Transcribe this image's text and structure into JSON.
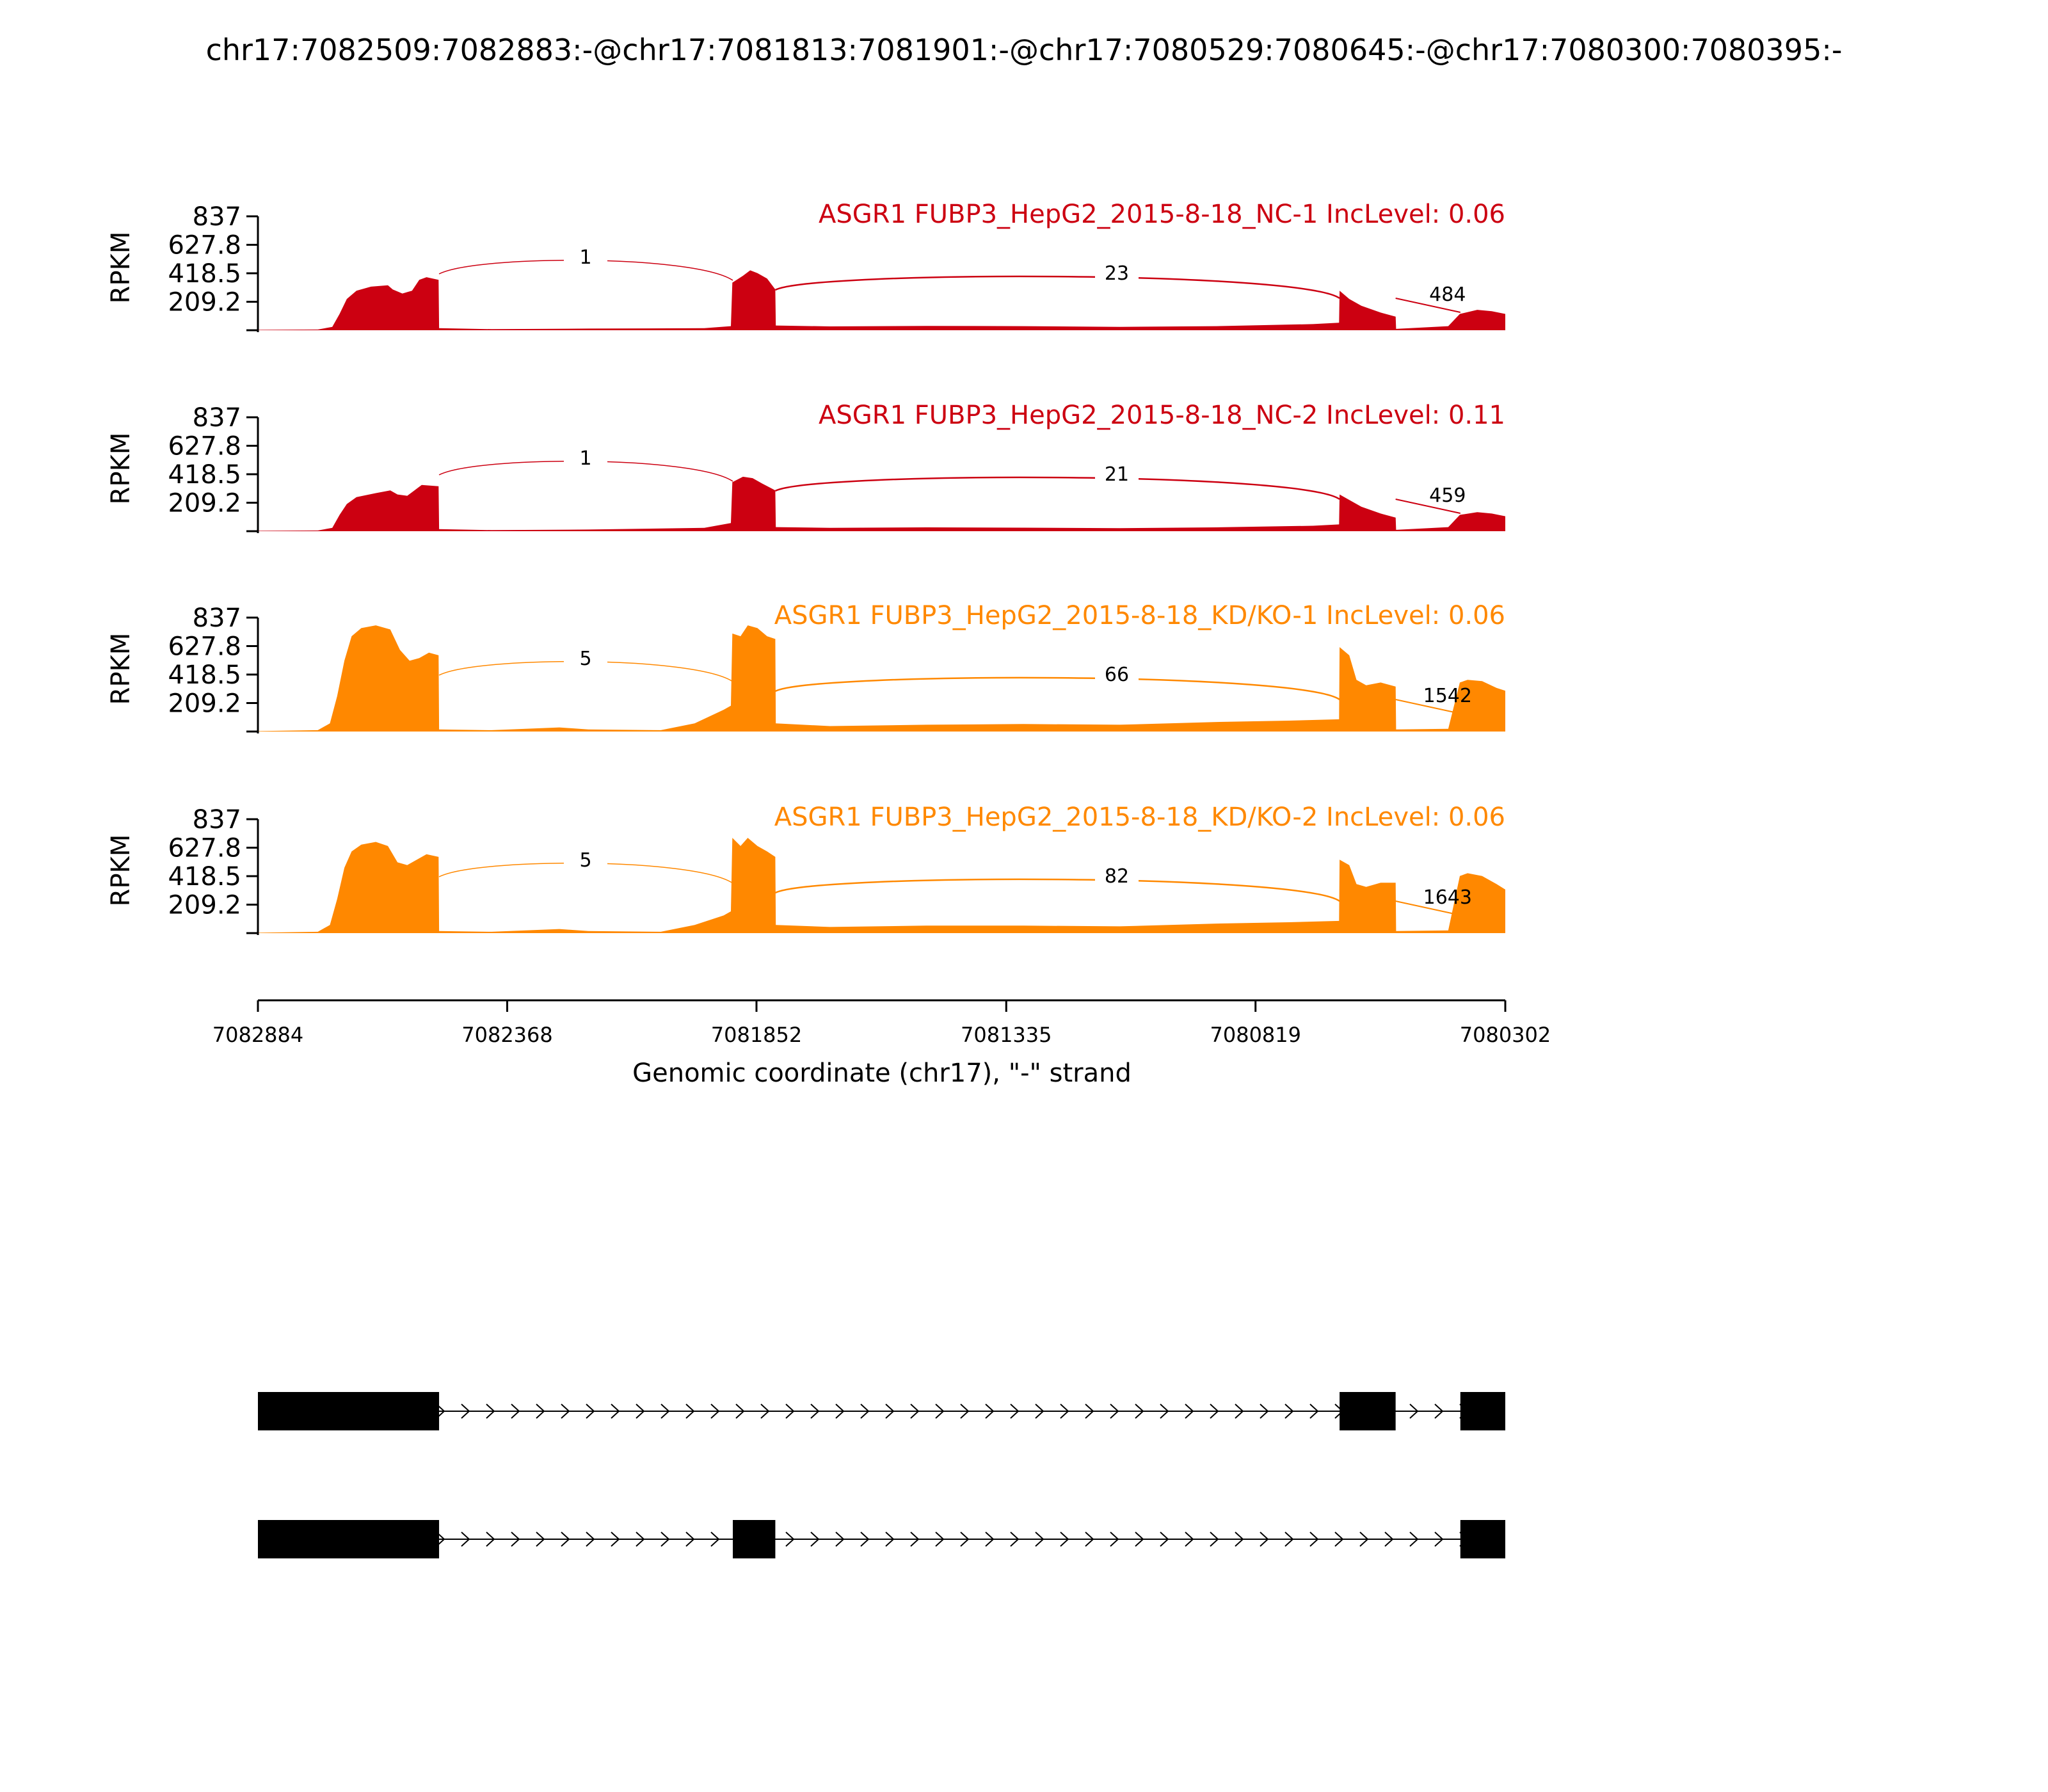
{
  "title": "chr17:7082509:7082883:-@chr17:7081813:7081901:-@chr17:7080529:7080645:-@chr17:7080300:7080395:-",
  "colors": {
    "nc": "#cc0011",
    "kd": "#ff8800",
    "axis": "#000000",
    "gene_model": "#000000"
  },
  "chart_data": {
    "type": "area",
    "description_type": "sashimi",
    "xlabel": "Genomic coordinate (chr17), \"-\" strand",
    "ylabel": "RPKM",
    "xlim": [
      7082884,
      7080302
    ],
    "x_ticks": [
      7082884,
      7082368,
      7081852,
      7081335,
      7080819,
      7080302
    ],
    "y_ticks": [
      "837",
      "627.8",
      "418.5",
      "209.2"
    ],
    "ylim": [
      0,
      837
    ],
    "tracks": [
      {
        "name": "ASGR1 FUBP3_HepG2_2015-8-18_NC-1 IncLevel: 0.06",
        "color_key": "nc",
        "coverage": [
          [
            7082884,
            3
          ],
          [
            7082760,
            5
          ],
          [
            7082730,
            25
          ],
          [
            7082715,
            120
          ],
          [
            7082700,
            230
          ],
          [
            7082680,
            290
          ],
          [
            7082650,
            320
          ],
          [
            7082615,
            330
          ],
          [
            7082605,
            300
          ],
          [
            7082585,
            270
          ],
          [
            7082565,
            290
          ],
          [
            7082550,
            370
          ],
          [
            7082535,
            390
          ],
          [
            7082510,
            370
          ],
          [
            7082509,
            15
          ],
          [
            7082400,
            8
          ],
          [
            7082300,
            10
          ],
          [
            7082200,
            12
          ],
          [
            7081960,
            15
          ],
          [
            7081905,
            30
          ],
          [
            7081902,
            350
          ],
          [
            7081880,
            400
          ],
          [
            7081865,
            440
          ],
          [
            7081850,
            420
          ],
          [
            7081830,
            380
          ],
          [
            7081813,
            300
          ],
          [
            7081812,
            35
          ],
          [
            7081700,
            28
          ],
          [
            7081500,
            32
          ],
          [
            7081300,
            30
          ],
          [
            7081100,
            25
          ],
          [
            7080900,
            30
          ],
          [
            7080700,
            45
          ],
          [
            7080646,
            55
          ],
          [
            7080645,
            290
          ],
          [
            7080625,
            230
          ],
          [
            7080600,
            180
          ],
          [
            7080560,
            130
          ],
          [
            7080529,
            100
          ],
          [
            7080528,
            10
          ],
          [
            7080420,
            30
          ],
          [
            7080396,
            120
          ],
          [
            7080360,
            150
          ],
          [
            7080330,
            140
          ],
          [
            7080302,
            120
          ]
        ],
        "junctions": [
          {
            "from": 7082509,
            "to": 7081901,
            "count": "1"
          },
          {
            "from": 7081813,
            "to": 7080645,
            "count": "23"
          },
          {
            "from": 7080529,
            "to": 7080395,
            "count": "484"
          }
        ]
      },
      {
        "name": "ASGR1 FUBP3_HepG2_2015-8-18_NC-2 IncLevel: 0.11",
        "color_key": "nc",
        "coverage": [
          [
            7082884,
            3
          ],
          [
            7082760,
            5
          ],
          [
            7082730,
            25
          ],
          [
            7082715,
            120
          ],
          [
            7082700,
            200
          ],
          [
            7082680,
            250
          ],
          [
            7082640,
            280
          ],
          [
            7082610,
            300
          ],
          [
            7082595,
            270
          ],
          [
            7082575,
            260
          ],
          [
            7082560,
            300
          ],
          [
            7082545,
            340
          ],
          [
            7082510,
            330
          ],
          [
            7082509,
            15
          ],
          [
            7082400,
            8
          ],
          [
            7082300,
            10
          ],
          [
            7082200,
            12
          ],
          [
            7081960,
            25
          ],
          [
            7081905,
            60
          ],
          [
            7081902,
            360
          ],
          [
            7081880,
            400
          ],
          [
            7081860,
            390
          ],
          [
            7081840,
            350
          ],
          [
            7081813,
            300
          ],
          [
            7081812,
            30
          ],
          [
            7081700,
            25
          ],
          [
            7081500,
            28
          ],
          [
            7081300,
            26
          ],
          [
            7081100,
            22
          ],
          [
            7080900,
            28
          ],
          [
            7080700,
            40
          ],
          [
            7080646,
            50
          ],
          [
            7080645,
            270
          ],
          [
            7080625,
            230
          ],
          [
            7080600,
            180
          ],
          [
            7080560,
            130
          ],
          [
            7080529,
            100
          ],
          [
            7080528,
            10
          ],
          [
            7080420,
            30
          ],
          [
            7080396,
            120
          ],
          [
            7080360,
            140
          ],
          [
            7080330,
            130
          ],
          [
            7080302,
            110
          ]
        ],
        "junctions": [
          {
            "from": 7082509,
            "to": 7081901,
            "count": "1"
          },
          {
            "from": 7081813,
            "to": 7080645,
            "count": "21"
          },
          {
            "from": 7080529,
            "to": 7080395,
            "count": "459"
          }
        ]
      },
      {
        "name": "ASGR1 FUBP3_HepG2_2015-8-18_KD/KO-1 IncLevel: 0.06",
        "color_key": "kd",
        "coverage": [
          [
            7082884,
            3
          ],
          [
            7082760,
            10
          ],
          [
            7082735,
            60
          ],
          [
            7082720,
            260
          ],
          [
            7082705,
            520
          ],
          [
            7082690,
            700
          ],
          [
            7082670,
            760
          ],
          [
            7082640,
            780
          ],
          [
            7082610,
            750
          ],
          [
            7082590,
            600
          ],
          [
            7082570,
            520
          ],
          [
            7082550,
            540
          ],
          [
            7082530,
            580
          ],
          [
            7082510,
            560
          ],
          [
            7082509,
            15
          ],
          [
            7082400,
            10
          ],
          [
            7082260,
            30
          ],
          [
            7082200,
            15
          ],
          [
            7082050,
            10
          ],
          [
            7081980,
            60
          ],
          [
            7081920,
            160
          ],
          [
            7081905,
            190
          ],
          [
            7081902,
            720
          ],
          [
            7081885,
            700
          ],
          [
            7081870,
            780
          ],
          [
            7081850,
            760
          ],
          [
            7081830,
            700
          ],
          [
            7081813,
            680
          ],
          [
            7081812,
            60
          ],
          [
            7081700,
            40
          ],
          [
            7081500,
            50
          ],
          [
            7081300,
            55
          ],
          [
            7081100,
            50
          ],
          [
            7080900,
            70
          ],
          [
            7080750,
            80
          ],
          [
            7080646,
            90
          ],
          [
            7080645,
            620
          ],
          [
            7080625,
            560
          ],
          [
            7080610,
            380
          ],
          [
            7080590,
            340
          ],
          [
            7080560,
            360
          ],
          [
            7080529,
            330
          ],
          [
            7080528,
            15
          ],
          [
            7080420,
            20
          ],
          [
            7080396,
            360
          ],
          [
            7080380,
            380
          ],
          [
            7080350,
            370
          ],
          [
            7080320,
            320
          ],
          [
            7080302,
            300
          ]
        ],
        "junctions": [
          {
            "from": 7082509,
            "to": 7081901,
            "count": "5"
          },
          {
            "from": 7081813,
            "to": 7080645,
            "count": "66"
          },
          {
            "from": 7080529,
            "to": 7080395,
            "count": "1542"
          }
        ]
      },
      {
        "name": "ASGR1 FUBP3_HepG2_2015-8-18_KD/KO-2 IncLevel: 0.06",
        "color_key": "kd",
        "coverage": [
          [
            7082884,
            3
          ],
          [
            7082760,
            10
          ],
          [
            7082735,
            60
          ],
          [
            7082720,
            250
          ],
          [
            7082705,
            480
          ],
          [
            7082690,
            600
          ],
          [
            7082670,
            650
          ],
          [
            7082640,
            670
          ],
          [
            7082615,
            640
          ],
          [
            7082595,
            520
          ],
          [
            7082575,
            500
          ],
          [
            7082555,
            540
          ],
          [
            7082535,
            580
          ],
          [
            7082510,
            560
          ],
          [
            7082509,
            15
          ],
          [
            7082400,
            10
          ],
          [
            7082260,
            30
          ],
          [
            7082200,
            15
          ],
          [
            7082050,
            10
          ],
          [
            7081980,
            60
          ],
          [
            7081920,
            130
          ],
          [
            7081905,
            160
          ],
          [
            7081902,
            700
          ],
          [
            7081885,
            640
          ],
          [
            7081870,
            700
          ],
          [
            7081850,
            640
          ],
          [
            7081830,
            600
          ],
          [
            7081813,
            560
          ],
          [
            7081812,
            60
          ],
          [
            7081700,
            45
          ],
          [
            7081500,
            55
          ],
          [
            7081300,
            55
          ],
          [
            7081100,
            50
          ],
          [
            7080900,
            70
          ],
          [
            7080750,
            80
          ],
          [
            7080646,
            90
          ],
          [
            7080645,
            540
          ],
          [
            7080625,
            500
          ],
          [
            7080610,
            360
          ],
          [
            7080590,
            340
          ],
          [
            7080560,
            370
          ],
          [
            7080529,
            370
          ],
          [
            7080528,
            15
          ],
          [
            7080420,
            20
          ],
          [
            7080396,
            420
          ],
          [
            7080380,
            440
          ],
          [
            7080350,
            420
          ],
          [
            7080320,
            360
          ],
          [
            7080302,
            320
          ]
        ],
        "junctions": [
          {
            "from": 7082509,
            "to": 7081901,
            "count": "5"
          },
          {
            "from": 7081813,
            "to": 7080645,
            "count": "82"
          },
          {
            "from": 7080529,
            "to": 7080395,
            "count": "1643"
          }
        ]
      }
    ],
    "gene_models": [
      {
        "exons": [
          [
            7082884,
            7082509
          ],
          [
            7080645,
            7080529
          ],
          [
            7080395,
            7080302
          ]
        ]
      },
      {
        "exons": [
          [
            7082884,
            7082509
          ],
          [
            7081901,
            7081813
          ],
          [
            7080395,
            7080302
          ]
        ]
      }
    ]
  }
}
